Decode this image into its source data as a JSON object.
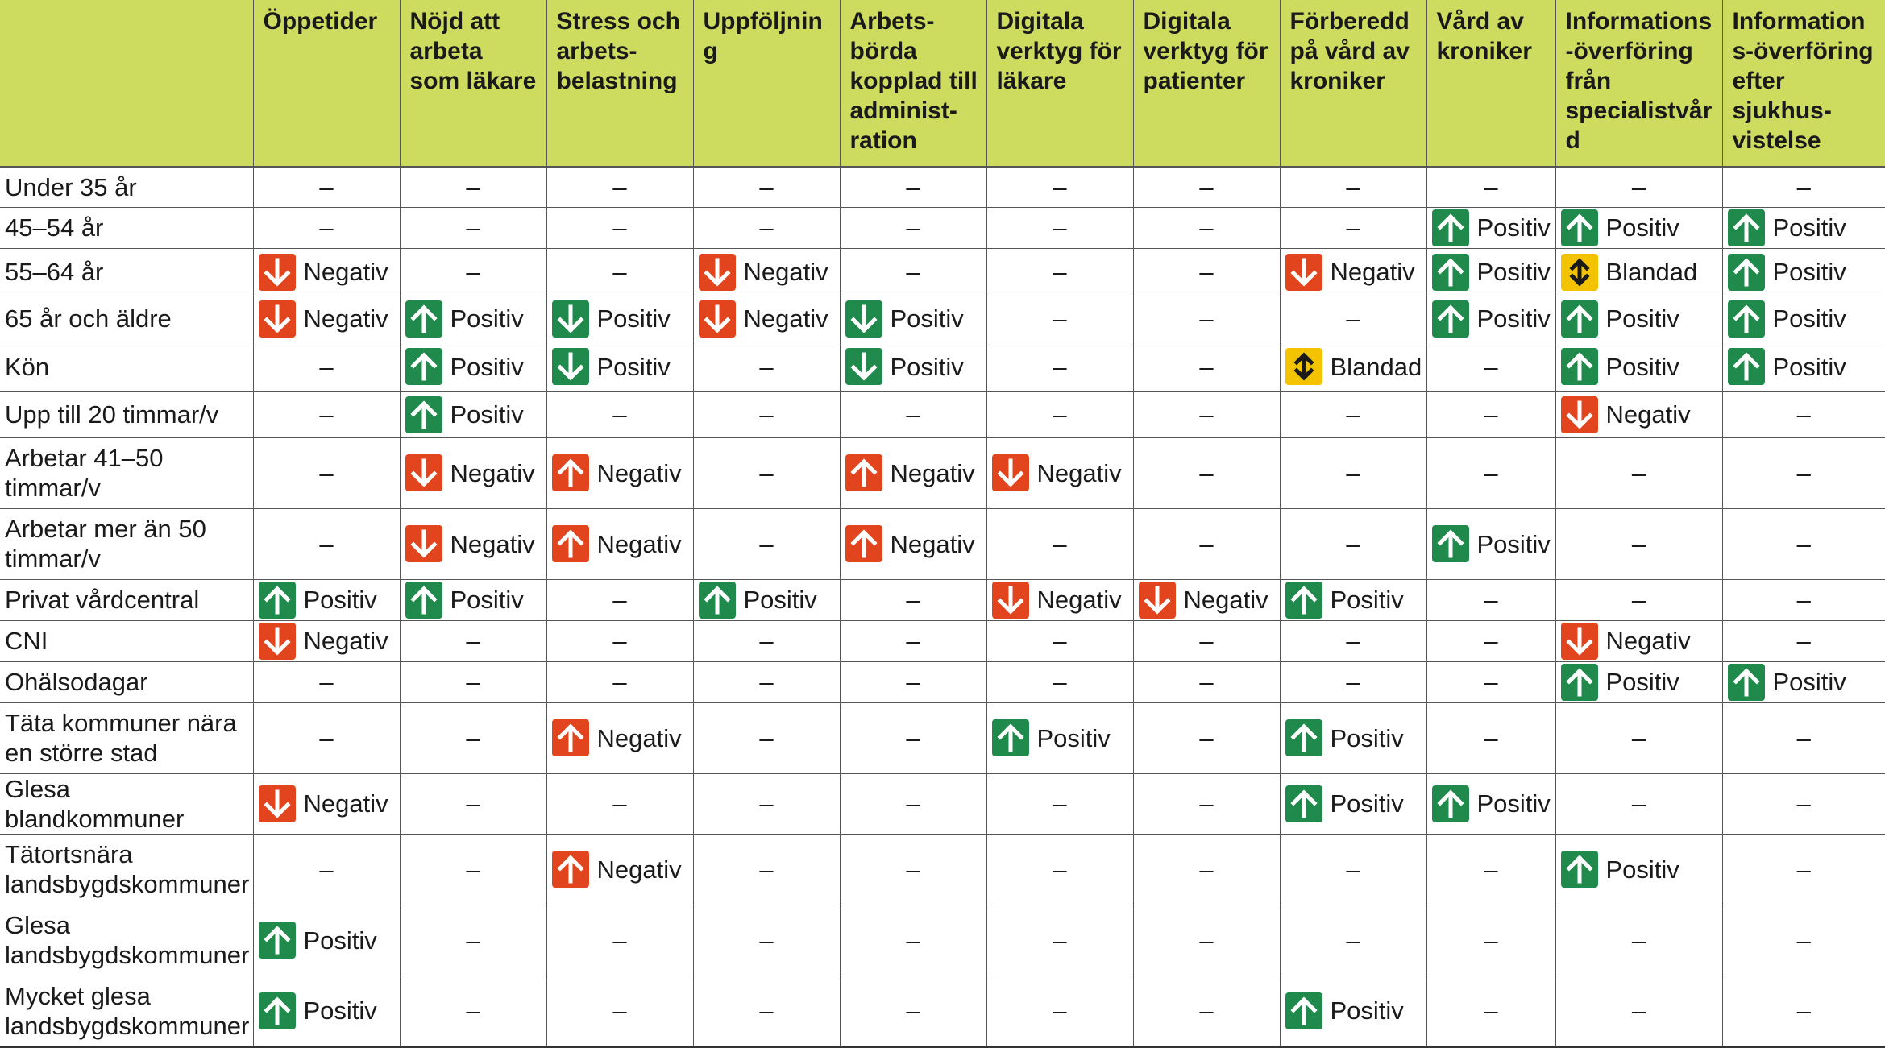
{
  "headers": [
    "",
    "Öppetider",
    "Nöjd att arbeta som läkare",
    "Stress och arbets-belastning",
    "Uppföljning",
    "Arbets-börda kopplad till administ-ration",
    "Digitala verktyg för läkare",
    "Digitala verktyg för patienter",
    "Förberedd på vård av kroniker",
    "Vård av kroniker",
    "Informations-överföring från specialistvård",
    "Informations-överföring efter sjukhus-vistelse"
  ],
  "dash": "–",
  "icons": {
    "ug": "arrow-up-green-icon",
    "dg": "arrow-down-green-icon",
    "ur": "arrow-up-red-icon",
    "dr": "arrow-down-red-icon",
    "m": "mixed-arrows-icon"
  },
  "colors": {
    "header_bg": "#cddc5f",
    "green": "#1f8a4c",
    "red": "#e2451e",
    "yellow": "#f4c300"
  },
  "rows": [
    {
      "label": "Under 35 år",
      "cells": [
        null,
        null,
        null,
        null,
        null,
        null,
        null,
        null,
        null,
        null,
        null
      ]
    },
    {
      "label": "45–54 år",
      "cells": [
        null,
        null,
        null,
        null,
        null,
        null,
        null,
        null,
        {
          "icon": "ug",
          "text": "Positiv"
        },
        {
          "icon": "ug",
          "text": "Positiv"
        },
        {
          "icon": "ug",
          "text": "Positiv"
        }
      ]
    },
    {
      "label": "55–64 år",
      "cells": [
        {
          "icon": "dr",
          "text": "Negativ"
        },
        null,
        null,
        {
          "icon": "dr",
          "text": "Negativ"
        },
        null,
        null,
        null,
        {
          "icon": "dr",
          "text": "Negativ"
        },
        {
          "icon": "ug",
          "text": "Positiv"
        },
        {
          "icon": "m",
          "text": "Blandad"
        },
        {
          "icon": "ug",
          "text": "Positiv"
        }
      ]
    },
    {
      "label": "65 år och äldre",
      "cells": [
        {
          "icon": "dr",
          "text": "Negativ"
        },
        {
          "icon": "ug",
          "text": "Positiv"
        },
        {
          "icon": "dg",
          "text": "Positiv"
        },
        {
          "icon": "dr",
          "text": "Negativ"
        },
        {
          "icon": "dg",
          "text": "Positiv"
        },
        null,
        null,
        null,
        {
          "icon": "ug",
          "text": "Positiv"
        },
        {
          "icon": "ug",
          "text": "Positiv"
        },
        {
          "icon": "ug",
          "text": "Positiv"
        }
      ]
    },
    {
      "label": "Kön",
      "cells": [
        null,
        {
          "icon": "ug",
          "text": "Positiv"
        },
        {
          "icon": "dg",
          "text": "Positiv"
        },
        null,
        {
          "icon": "dg",
          "text": "Positiv"
        },
        null,
        null,
        {
          "icon": "m",
          "text": "Blandad"
        },
        null,
        {
          "icon": "ug",
          "text": "Positiv"
        },
        {
          "icon": "ug",
          "text": "Positiv"
        }
      ]
    },
    {
      "label": "Upp till 20 timmar/v",
      "cells": [
        null,
        {
          "icon": "ug",
          "text": "Positiv"
        },
        null,
        null,
        null,
        null,
        null,
        null,
        null,
        {
          "icon": "dr",
          "text": "Negativ"
        },
        null
      ]
    },
    {
      "label": "Arbetar 41–50 timmar/v",
      "cells": [
        null,
        {
          "icon": "dr",
          "text": "Negativ"
        },
        {
          "icon": "ur",
          "text": "Negativ"
        },
        null,
        {
          "icon": "ur",
          "text": "Negativ"
        },
        {
          "icon": "dr",
          "text": "Negativ"
        },
        null,
        null,
        null,
        null,
        null
      ]
    },
    {
      "label": "Arbetar mer än 50 timmar/v",
      "cells": [
        null,
        {
          "icon": "dr",
          "text": "Negativ"
        },
        {
          "icon": "ur",
          "text": "Negativ"
        },
        null,
        {
          "icon": "ur",
          "text": "Negativ"
        },
        null,
        null,
        null,
        {
          "icon": "ug",
          "text": "Positiv"
        },
        null,
        null
      ]
    },
    {
      "label": "Privat vårdcentral",
      "cells": [
        {
          "icon": "ug",
          "text": "Positiv"
        },
        {
          "icon": "ug",
          "text": "Positiv"
        },
        null,
        {
          "icon": "ug",
          "text": "Positiv"
        },
        null,
        {
          "icon": "dr",
          "text": "Negativ"
        },
        {
          "icon": "dr",
          "text": "Negativ"
        },
        {
          "icon": "ug",
          "text": "Positiv"
        },
        null,
        null,
        null
      ]
    },
    {
      "label": "CNI",
      "cells": [
        {
          "icon": "dr",
          "text": "Negativ"
        },
        null,
        null,
        null,
        null,
        null,
        null,
        null,
        null,
        {
          "icon": "dr",
          "text": "Negativ"
        },
        null
      ]
    },
    {
      "label": "Ohälsodagar",
      "cells": [
        null,
        null,
        null,
        null,
        null,
        null,
        null,
        null,
        null,
        {
          "icon": "ug",
          "text": "Positiv"
        },
        {
          "icon": "ug",
          "text": "Positiv"
        }
      ]
    },
    {
      "label": "Täta kommuner nära en större stad",
      "cells": [
        null,
        null,
        {
          "icon": "ur",
          "text": "Negativ"
        },
        null,
        null,
        {
          "icon": "ug",
          "text": "Positiv"
        },
        null,
        {
          "icon": "ug",
          "text": "Positiv"
        },
        null,
        null,
        null
      ]
    },
    {
      "label": "Glesa blandkommuner",
      "cells": [
        {
          "icon": "dr",
          "text": "Negativ"
        },
        null,
        null,
        null,
        null,
        null,
        null,
        {
          "icon": "ug",
          "text": "Positiv"
        },
        {
          "icon": "ug",
          "text": "Positiv"
        },
        null,
        null
      ]
    },
    {
      "label": "Tätortsnära landsbygdskommuner",
      "cells": [
        null,
        null,
        {
          "icon": "ur",
          "text": "Negativ"
        },
        null,
        null,
        null,
        null,
        null,
        null,
        {
          "icon": "ug",
          "text": "Positiv"
        },
        null
      ]
    },
    {
      "label": "Glesa landsbygdskommuner",
      "cells": [
        {
          "icon": "ug",
          "text": "Positiv"
        },
        null,
        null,
        null,
        null,
        null,
        null,
        null,
        null,
        null,
        null
      ]
    },
    {
      "label": "Mycket glesa landsbygdskommuner",
      "cells": [
        {
          "icon": "ug",
          "text": "Positiv"
        },
        null,
        null,
        null,
        null,
        null,
        null,
        {
          "icon": "ug",
          "text": "Positiv"
        },
        null,
        null,
        null
      ]
    }
  ]
}
